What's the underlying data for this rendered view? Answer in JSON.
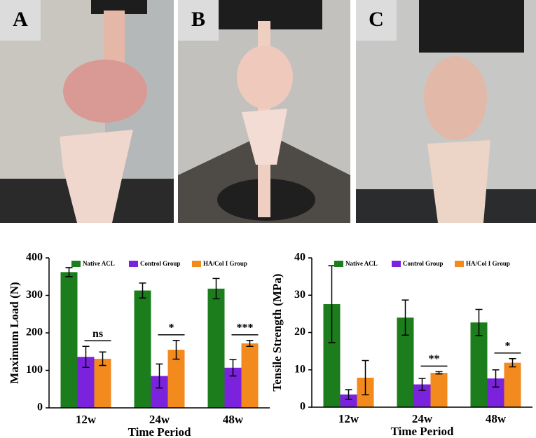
{
  "panels": [
    "A",
    "B",
    "C"
  ],
  "chart_data": [
    {
      "type": "bar",
      "ylabel": "Maximum Load (N)",
      "xlabel": "Time Period",
      "categories": [
        "12w",
        "24w",
        "48w"
      ],
      "series": [
        {
          "name": "Native ACL",
          "color": "#1b7d1b",
          "values": [
            362,
            313,
            318
          ],
          "errors": [
            12,
            20,
            27
          ]
        },
        {
          "name": "Control Group",
          "color": "#7b22dd",
          "values": [
            136,
            85,
            107
          ],
          "errors": [
            28,
            32,
            22
          ]
        },
        {
          "name": "HA/Col I Group",
          "color": "#f28a1e",
          "values": [
            131,
            155,
            172
          ],
          "errors": [
            18,
            25,
            8
          ]
        }
      ],
      "annotations": [
        "ns",
        "*",
        "***"
      ],
      "ylim": [
        0,
        400
      ],
      "yticks": [
        0,
        100,
        200,
        300,
        400
      ]
    },
    {
      "type": "bar",
      "ylabel": "Tensile Strength (MPa)",
      "xlabel": "Time Period",
      "categories": [
        "12w",
        "24w",
        "48w"
      ],
      "series": [
        {
          "name": "Native ACL",
          "color": "#1b7d1b",
          "values": [
            27.6,
            24.0,
            22.7
          ],
          "errors": [
            10.3,
            4.7,
            3.5
          ]
        },
        {
          "name": "Control Group",
          "color": "#7b22dd",
          "values": [
            3.4,
            6.1,
            7.7
          ],
          "errors": [
            1.3,
            1.6,
            2.3
          ]
        },
        {
          "name": "HA/Col I Group",
          "color": "#f28a1e",
          "values": [
            7.9,
            9.2,
            11.9
          ],
          "errors": [
            4.6,
            0.3,
            1.1
          ]
        }
      ],
      "annotations": [
        null,
        "**",
        "*"
      ],
      "ylim": [
        0,
        40
      ],
      "yticks": [
        0,
        10,
        20,
        30,
        40
      ]
    }
  ]
}
